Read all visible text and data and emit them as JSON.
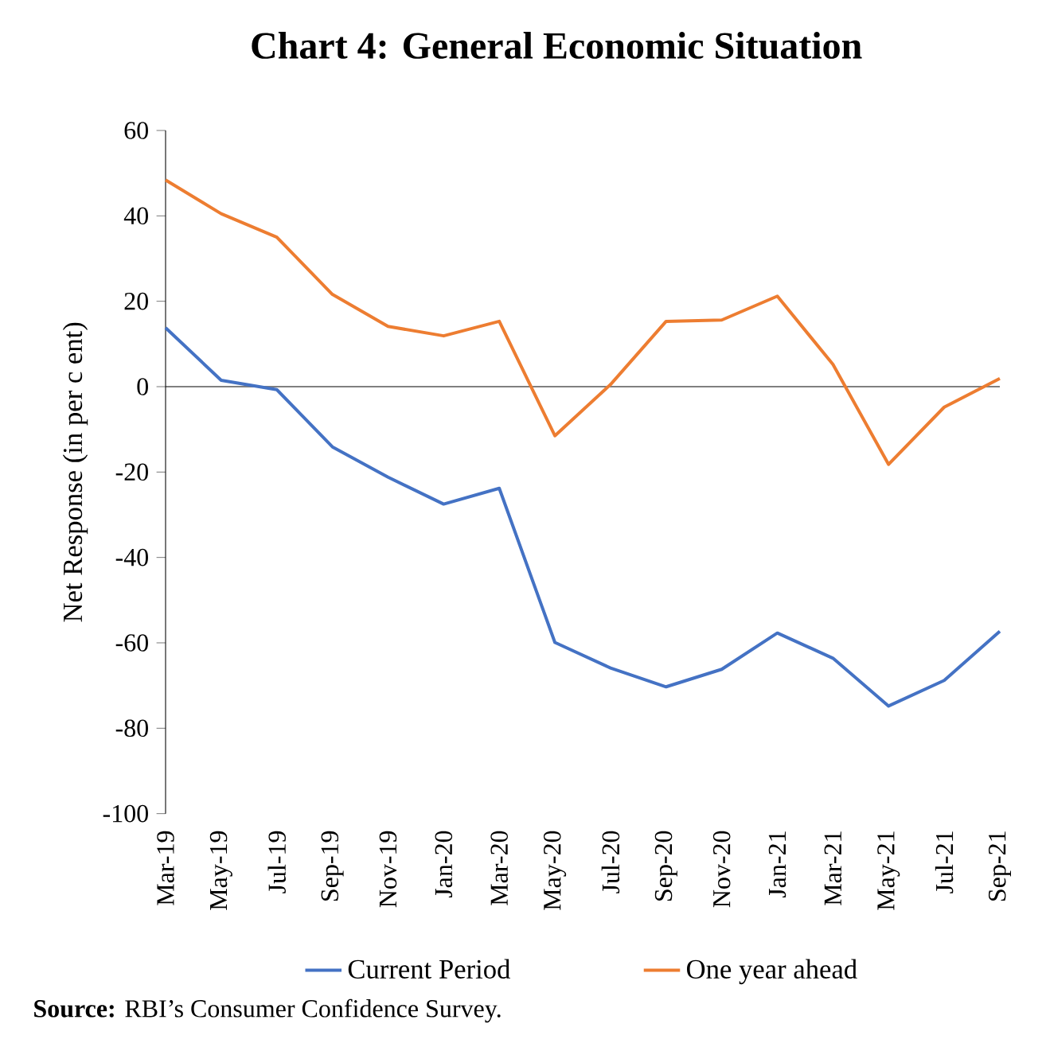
{
  "chart_data": {
    "type": "line",
    "title": "Chart 4: General Economic Situation",
    "ylabel": "Net Response (in per c ent)",
    "categories": [
      "Mar-19",
      "May-19",
      "Jul-19",
      "Sep-19",
      "Nov-19",
      "Jan-20",
      "Mar-20",
      "May-20",
      "Jul-20",
      "Sep-20",
      "Nov-20",
      "Jan-21",
      "Mar-21",
      "May-21",
      "Jul-21",
      "Sep-21"
    ],
    "series": [
      {
        "name": "Current Period",
        "color": "#4472c4",
        "values": [
          13.8,
          1.5,
          -0.7,
          -14.1,
          -21.2,
          -27.5,
          -23.8,
          -59.9,
          -65.9,
          -70.3,
          -66.2,
          -57.7,
          -63.6,
          -74.8,
          -68.8,
          -57.3
        ]
      },
      {
        "name": "One year ahead",
        "color": "#ed7d31",
        "values": [
          48.4,
          40.5,
          35,
          21.6,
          14.1,
          11.9,
          15.3,
          -11.5,
          0.5,
          15.3,
          15.6,
          21.2,
          5.2,
          -18.2,
          -4.8,
          1.9
        ]
      }
    ],
    "ylim": [
      -100,
      60
    ],
    "yticks": [
      -100,
      -80,
      -60,
      -40,
      -20,
      0,
      20,
      40,
      60
    ],
    "legend": "bottom",
    "marker": "none",
    "line_style": "solid",
    "annotations": [
      "**Source:** RBI’s Consumer Confidence Survey."
    ]
  }
}
